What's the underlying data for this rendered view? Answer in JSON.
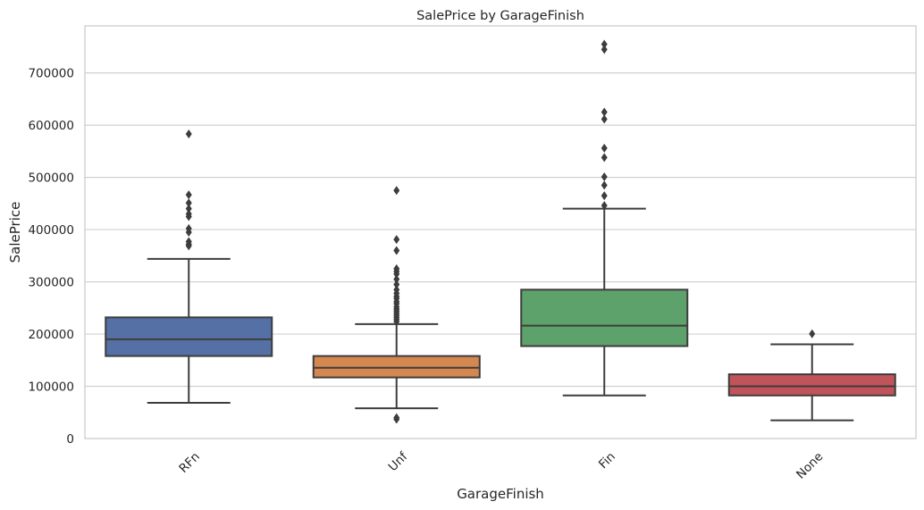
{
  "chart_data": {
    "type": "box",
    "title": "SalePrice by GarageFinish",
    "xlabel": "GarageFinish",
    "ylabel": "SalePrice",
    "ylim": [
      0,
      790000
    ],
    "yticks": [
      0,
      100000,
      200000,
      300000,
      400000,
      500000,
      600000,
      700000
    ],
    "ytick_labels": [
      "0",
      "100000",
      "200000",
      "300000",
      "400000",
      "500000",
      "600000",
      "700000"
    ],
    "grid": "horizontal",
    "categories": [
      "RFn",
      "Unf",
      "Fin",
      "None"
    ],
    "series": [
      {
        "category": "RFn",
        "color": "#5470a4",
        "whisker_low": 68500,
        "q1": 158000,
        "median": 190000,
        "q3": 232000,
        "whisker_high": 344000,
        "outliers": [
          583000,
          466500,
          451000,
          440000,
          430000,
          425000,
          402000,
          395000,
          377000,
          372000,
          369000
        ]
      },
      {
        "category": "Unf",
        "color": "#d4874e",
        "whisker_low": 58000,
        "q1": 117000,
        "median": 135500,
        "q3": 158000,
        "whisker_high": 219000,
        "outliers": [
          475000,
          381000,
          360000,
          325000,
          320000,
          315000,
          305000,
          295000,
          285000,
          278000,
          272000,
          268000,
          262000,
          258000,
          252000,
          248000,
          244000,
          240000,
          236000,
          232000,
          228000,
          224000,
          40000,
          37000
        ]
      },
      {
        "category": "Fin",
        "color": "#5ea26b",
        "whisker_low": 82500,
        "q1": 177000,
        "median": 216000,
        "q3": 285000,
        "whisker_high": 440000,
        "outliers": [
          755000,
          745000,
          625000,
          611500,
          556000,
          538000,
          501000,
          485000,
          465000,
          446000
        ]
      },
      {
        "category": "None",
        "color": "#c1535a",
        "whisker_low": 34900,
        "q1": 82500,
        "median": 100000,
        "q3": 123000,
        "whisker_high": 180500,
        "outliers": [
          200500
        ]
      }
    ]
  }
}
